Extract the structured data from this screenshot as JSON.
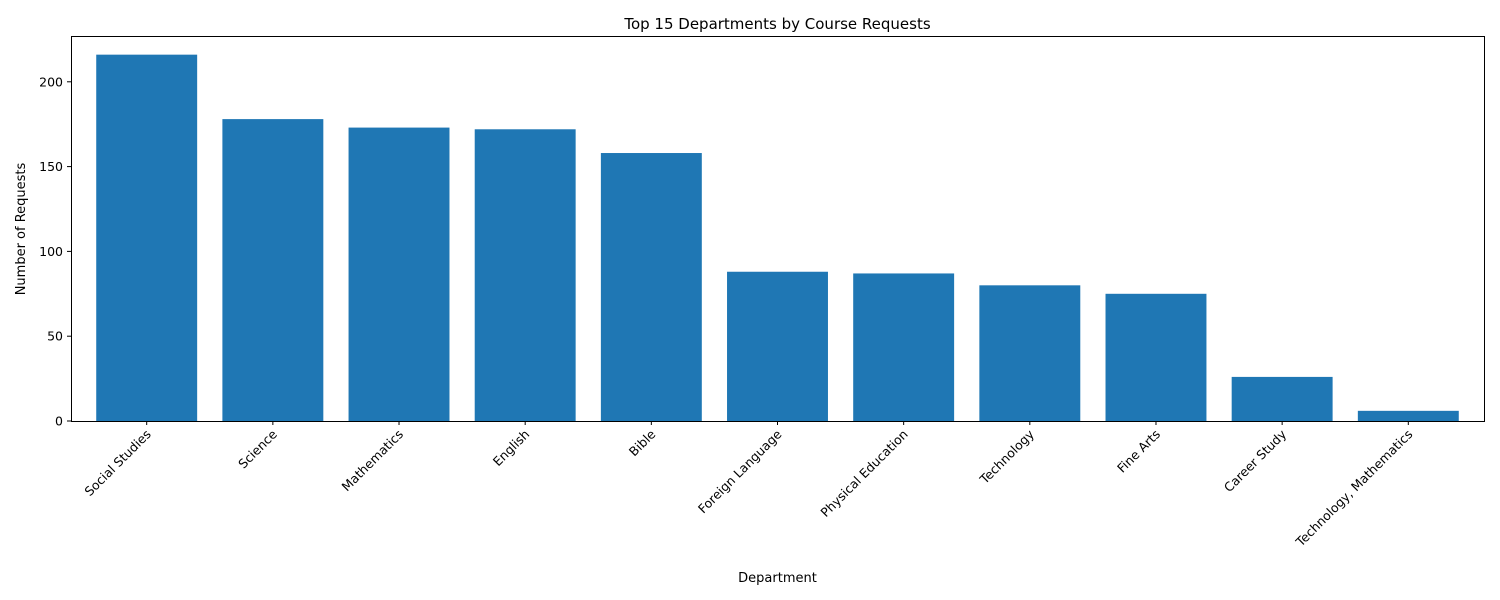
{
  "chart_data": {
    "type": "bar",
    "title": "Top 15 Departments by Course Requests",
    "xlabel": "Department",
    "ylabel": "Number of Requests",
    "categories": [
      "Social Studies",
      "Science",
      "Mathematics",
      "English",
      "Bible",
      "Foreign Language",
      "Physical Education",
      "Technology",
      "Fine Arts",
      "Career Study",
      "Technology, Mathematics"
    ],
    "values": [
      216,
      178,
      173,
      172,
      158,
      88,
      87,
      80,
      75,
      26,
      6
    ],
    "ylim": [
      0,
      227
    ],
    "yticks": [
      0,
      50,
      100,
      150,
      200
    ],
    "bar_color": "#1f77b4",
    "grid": false,
    "legend": "none"
  }
}
